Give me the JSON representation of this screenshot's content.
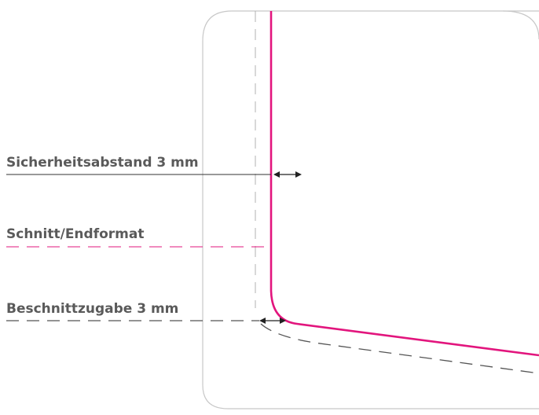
{
  "labels": {
    "safety_margin": "Sicherheitsabstand 3 mm",
    "trim": "Schnitt/Endformat",
    "bleed": "Beschnittzugabe 3 mm"
  },
  "colors": {
    "trim_line": "#e2157d",
    "frame": "#c8c8c8",
    "dashed_gray": "#6f6f6f",
    "dashed_light": "#b0b0b0",
    "text": "#5a5a5a",
    "leader_dark": "#333333"
  }
}
